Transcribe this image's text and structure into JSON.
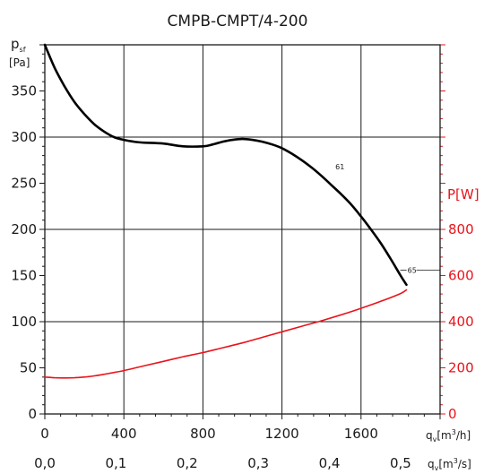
{
  "chart_data": {
    "type": "line",
    "title": "CMPB-CMPT/4-200",
    "y_left_label": {
      "main": "p",
      "sub": "sf",
      "unit": "[Pa]"
    },
    "y_right_label": "P[W]",
    "x_label_m3h": {
      "main": "q",
      "sub": "v",
      "unit": "[m",
      "sup": "3",
      "unit_end": "/h]"
    },
    "x_label_m3s": {
      "main": "q",
      "sub": "v",
      "unit": "[m",
      "sup": "3",
      "unit_end": "/s]"
    },
    "x_range_m3h": [
      0,
      2000
    ],
    "y_left_range": [
      0,
      400
    ],
    "y_right_range": [
      0,
      1600
    ],
    "x_ticks_m3h": [
      "0",
      "400",
      "800",
      "1200",
      "1600"
    ],
    "x_ticks_m3s": [
      "0,0",
      "0,1",
      "0,2",
      "0,3",
      "0,4",
      "0,5"
    ],
    "y_left_ticks": [
      "0",
      "50",
      "100",
      "150",
      "200",
      "250",
      "300",
      "350"
    ],
    "y_right_ticks": [
      "0",
      "200",
      "400",
      "600",
      "800"
    ],
    "grid": true,
    "series": [
      {
        "axis": "left",
        "color": "#000000",
        "x": [
          0,
          50,
          100,
          150,
          200,
          250,
          300,
          350,
          400,
          450,
          500,
          600,
          700,
          800,
          850,
          900,
          950,
          1000,
          1050,
          1100,
          1150,
          1200,
          1250,
          1300,
          1350,
          1400,
          1450,
          1500,
          1550,
          1600,
          1650,
          1700,
          1750,
          1800,
          1830
        ],
        "values": [
          400,
          375,
          355,
          338,
          325,
          314,
          306,
          300,
          297,
          295,
          294,
          293,
          290,
          290,
          292,
          295,
          297,
          298,
          297,
          295,
          292,
          288,
          282,
          275,
          267,
          258,
          248,
          238,
          227,
          214,
          200,
          185,
          168,
          150,
          140
        ]
      },
      {
        "axis": "right",
        "color": "#e8141b",
        "x": [
          0,
          50,
          100,
          150,
          200,
          250,
          300,
          400,
          500,
          600,
          700,
          800,
          900,
          1000,
          1100,
          1200,
          1300,
          1400,
          1500,
          1600,
          1700,
          1800,
          1830
        ],
        "values": [
          160,
          157,
          156,
          157,
          160,
          165,
          172,
          188,
          208,
          228,
          248,
          266,
          287,
          308,
          332,
          356,
          380,
          404,
          430,
          458,
          488,
          522,
          538
        ]
      }
    ],
    "annotations": [
      {
        "text": "61",
        "x": 1470,
        "y": 265
      },
      {
        "text": "65",
        "x": 1835,
        "y": 153
      }
    ]
  }
}
